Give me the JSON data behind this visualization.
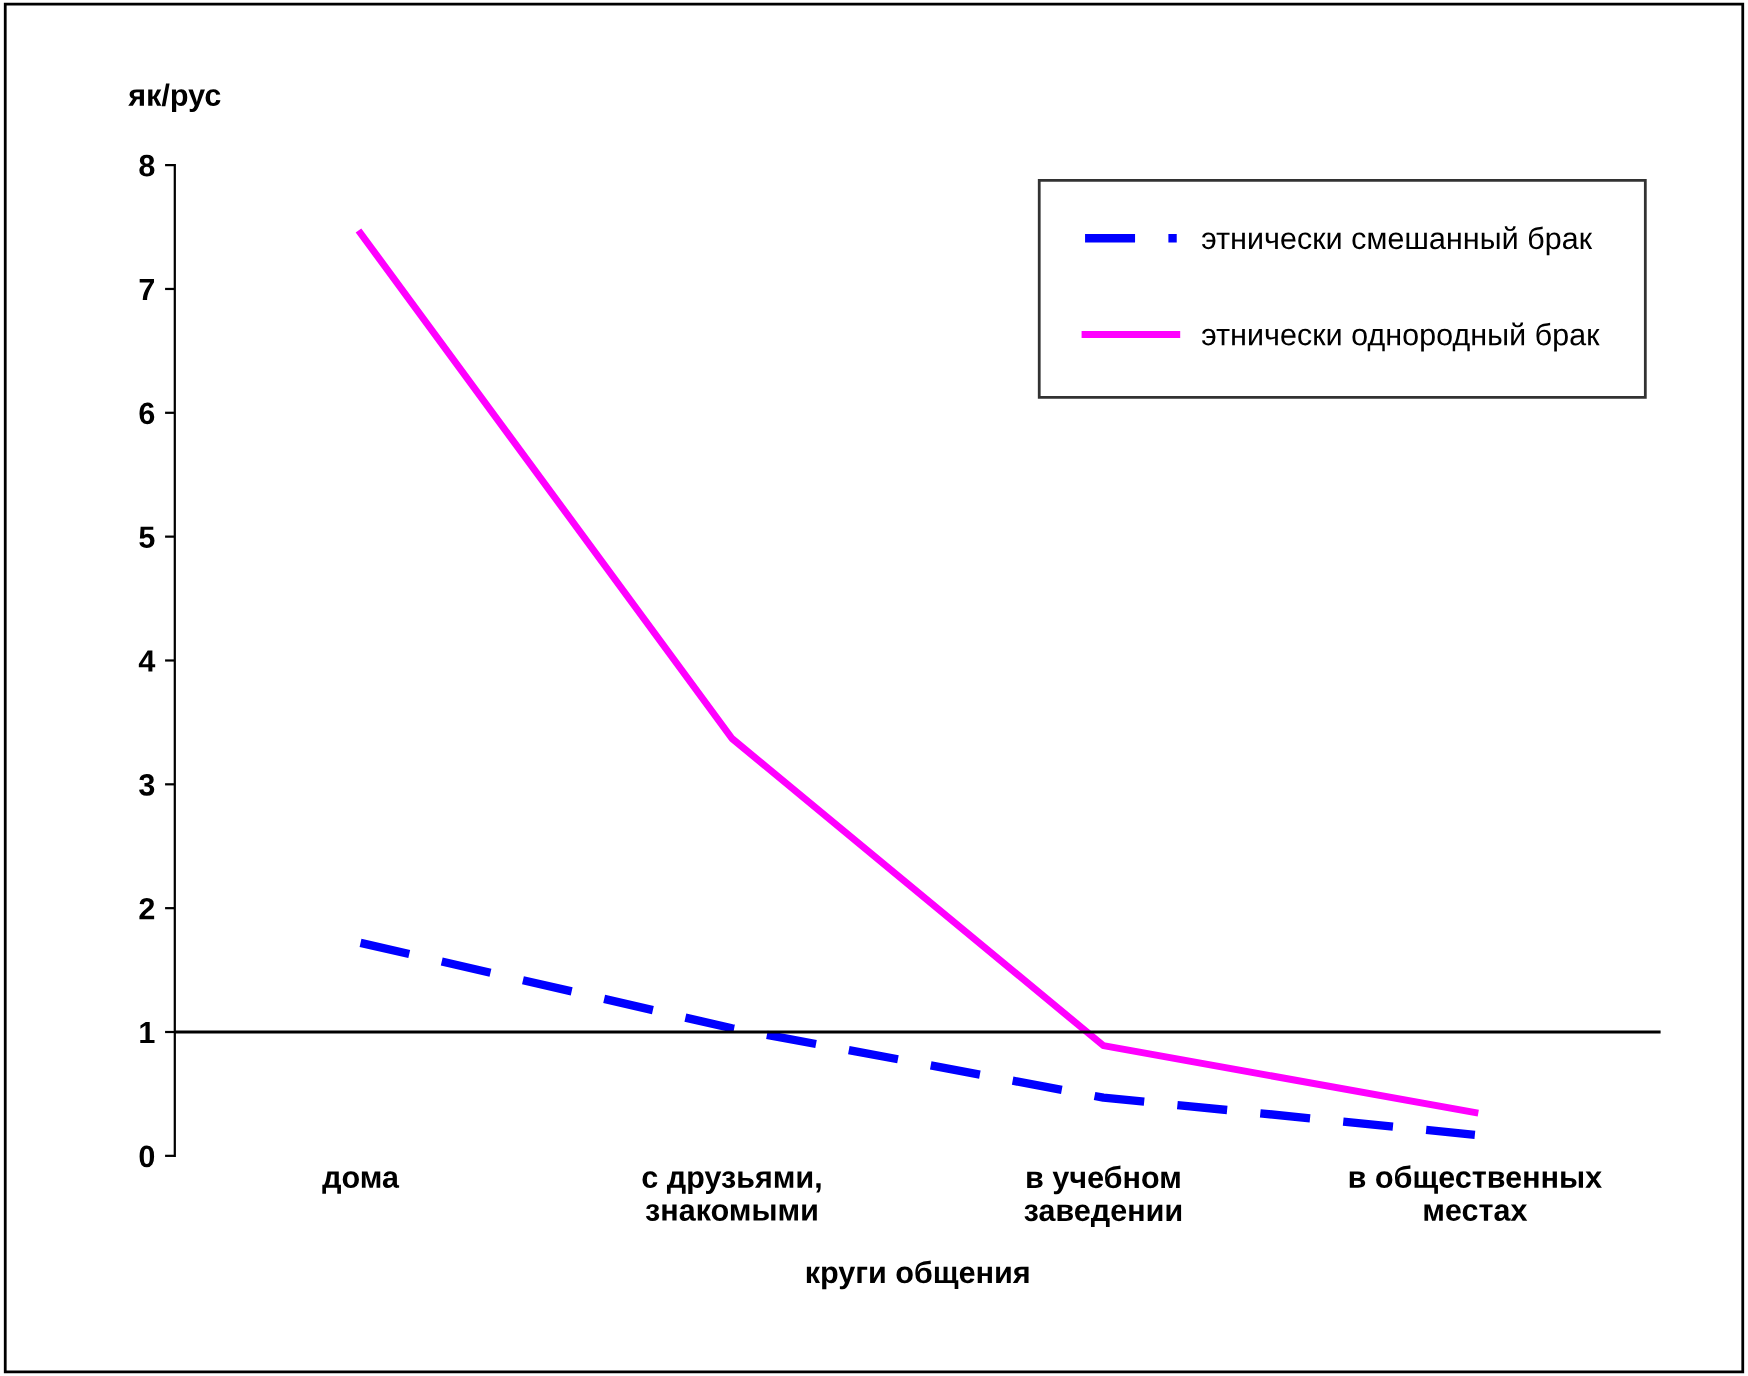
{
  "chart_data": {
    "type": "line",
    "ylabel": "як/рус",
    "xlabel": "круги общения",
    "categories": [
      "дома",
      "с друзьями,\nзнакомыми",
      "в учебном\nзаведении",
      "в общественных\nместах"
    ],
    "series": [
      {
        "name": "этнически смешанный брак",
        "color": "#0000ff",
        "values": [
          1.72,
          1.03,
          0.47,
          0.17
        ],
        "line_style": "dashed"
      },
      {
        "name": "этнически однородный брак",
        "color": "#ff00ff",
        "values": [
          7.45,
          3.37,
          0.89,
          0.35
        ],
        "line_style": "solid"
      }
    ],
    "ylim": [
      0,
      8
    ],
    "yticks": [
      0,
      1,
      2,
      3,
      4,
      5,
      6,
      7,
      8
    ],
    "ref_lines": [
      {
        "axis": "y",
        "value": 1,
        "color": "#000000"
      }
    ],
    "grid": false,
    "legend": "top right",
    "marker": "none"
  }
}
